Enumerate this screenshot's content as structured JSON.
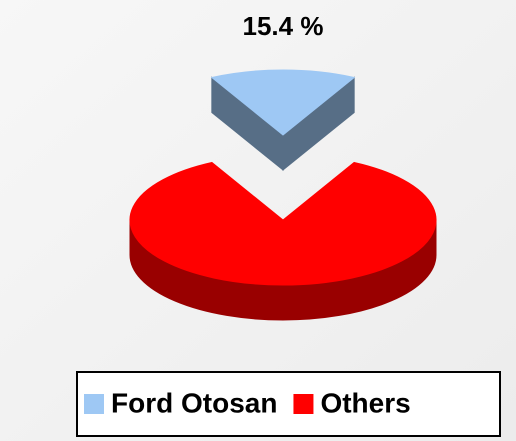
{
  "chart_data": {
    "type": "pie3d",
    "categories": [
      "Ford Otosan",
      "Others"
    ],
    "values": [
      15.4,
      84.6
    ],
    "value_labels": [
      "15.4 %",
      null
    ],
    "colors": [
      "#9ec8f4",
      "#ff0000"
    ],
    "legend": "bottom"
  }
}
